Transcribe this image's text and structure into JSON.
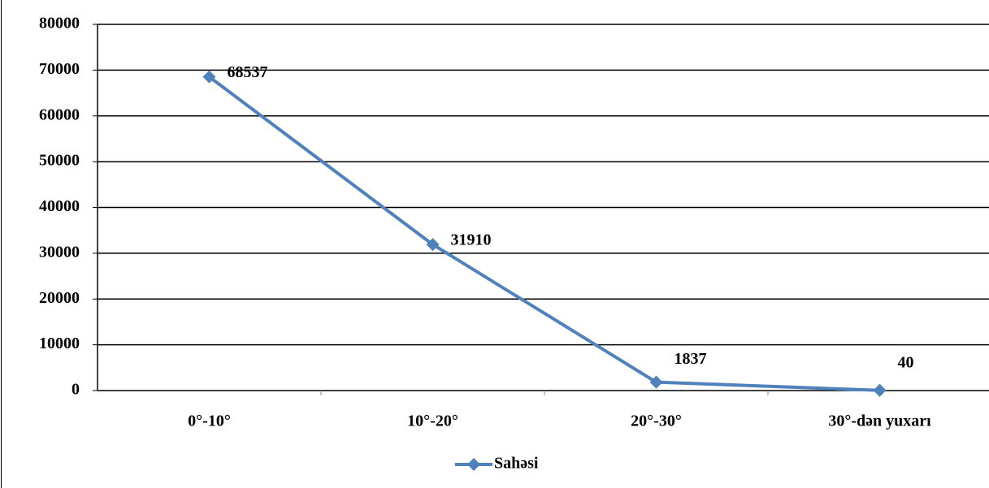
{
  "chart_data": {
    "type": "line",
    "categories": [
      "0°-10°",
      "10°-20°",
      "20°-30°",
      "30°-dən yuxarı"
    ],
    "series": [
      {
        "name": "Sahəsi",
        "color": "#4f81bd",
        "values": [
          68537,
          31910,
          1837,
          40
        ]
      }
    ],
    "ylim": [
      0,
      80000
    ],
    "yticks": [
      0,
      10000,
      20000,
      30000,
      40000,
      50000,
      60000,
      70000,
      80000
    ],
    "grid": true,
    "legend": "bottom"
  }
}
